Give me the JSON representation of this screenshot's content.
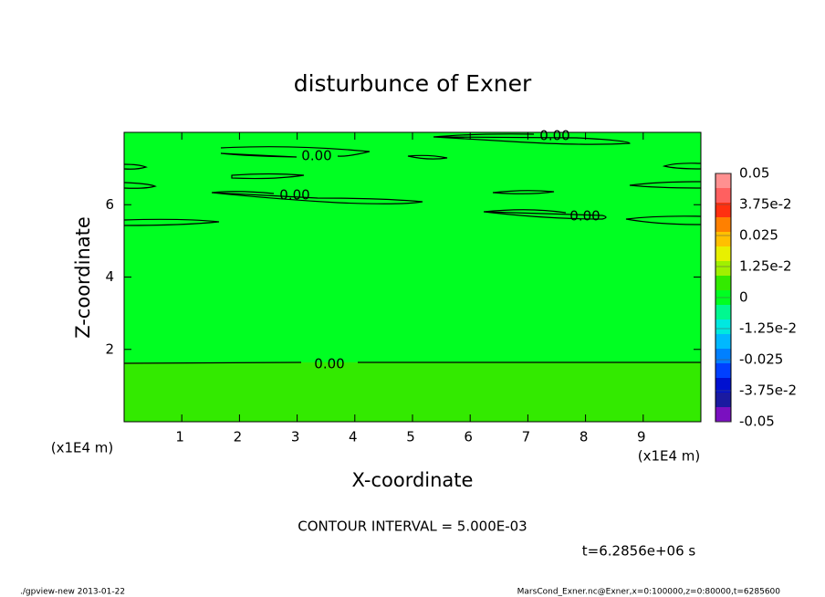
{
  "chart_data": {
    "type": "contour",
    "title": "disturbunce of Exner",
    "xlabel": "X-coordinate",
    "ylabel": "Z-coordinate",
    "x_unit": "(x1E4 m)",
    "xlim": [
      0,
      10
    ],
    "ylim": [
      0,
      8
    ],
    "xticks": [
      1,
      2,
      3,
      4,
      5,
      6,
      7,
      8,
      9
    ],
    "yticks": [
      2,
      4,
      6
    ],
    "field_colors": [
      "#33ea00",
      "#00ff22"
    ],
    "contour_labels": [
      "0.00",
      "0.00",
      "0.00",
      "0.00",
      "0.00"
    ],
    "colorbar": {
      "levels": [
        {
          "value": -0.05,
          "label": "-0.05"
        },
        {
          "value": -0.0375,
          "label": "-3.75e-2"
        },
        {
          "value": -0.025,
          "label": "-0.025"
        },
        {
          "value": -0.0125,
          "label": "-1.25e-2"
        },
        0,
        {
          "value": 0.0125,
          "label": "1.25e-2"
        },
        {
          "value": 0.025,
          "label": "0.025"
        },
        {
          "value": 0.0375,
          "label": "3.75e-2"
        },
        0.05
      ],
      "colors": [
        "#7a10c0",
        "#1a1aa0",
        "#0010d0",
        "#0040ff",
        "#0080ff",
        "#00b8ff",
        "#00e8e0",
        "#00f890",
        "#00ff22",
        "#33ea00",
        "#a0f000",
        "#e8f000",
        "#ffc000",
        "#ff8000",
        "#ff3010",
        "#ff6060",
        "#ff9090"
      ]
    },
    "contour_interval": "CONTOUR INTERVAL = 5.000E-03",
    "time": "t=6.2856e+06 s",
    "footer_left": "./gpview-new  2013-01-22",
    "footer_right": "MarsCond_Exner.nc@Exner,x=0:100000,z=0:80000,t=6285600"
  }
}
